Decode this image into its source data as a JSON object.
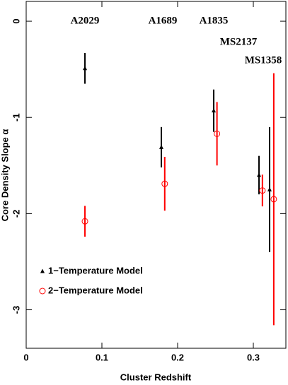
{
  "chart_data": {
    "type": "scatter",
    "x_label": "Cluster Redshift",
    "y_label": "Core Density Slope α",
    "xlim": [
      0,
      0.343
    ],
    "ylim": [
      -3.4,
      0.206
    ],
    "xticks": [
      0,
      0.1,
      0.2,
      0.3
    ],
    "yticks": [
      0,
      -1,
      -2,
      -3
    ],
    "legend": "lower left",
    "annotations": [
      "A2029",
      "A1689",
      "A1835",
      "MS2137",
      "MS1358"
    ],
    "series": [
      {
        "name": "1−Temperature Model",
        "color": "#000000",
        "marker": "triangle",
        "x": [
          0.0776,
          0.1785,
          0.2477,
          0.3075,
          0.3215
        ],
        "values": [
          -0.49,
          -1.31,
          -0.93,
          -1.6,
          -1.75
        ],
        "errors": [
          0.16,
          0.21,
          0.22,
          0.2,
          0.65
        ]
      },
      {
        "name": "2−Temperature Model",
        "color": "#ff0000",
        "marker": "circle",
        "x": [
          0.0776,
          0.183,
          0.252,
          0.312,
          0.327
        ],
        "values": [
          -2.08,
          -1.69,
          -1.17,
          -1.76,
          -1.85
        ],
        "errors": [
          0.16,
          0.28,
          0.33,
          0.165,
          1.31
        ]
      }
    ]
  }
}
